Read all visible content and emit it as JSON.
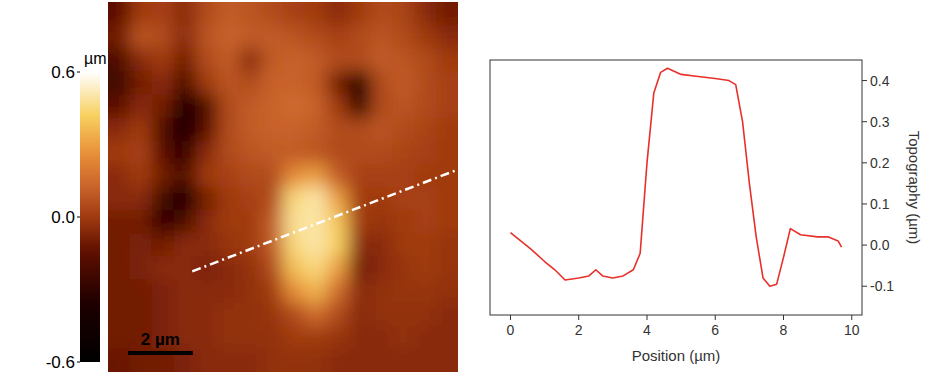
{
  "chart_data": [
    {
      "type": "heatmap",
      "xlim": [
        0,
        10.8
      ],
      "ylim": [
        0,
        11.4
      ],
      "cells": [
        [
          -0.15,
          0.0,
          0.02,
          -0.05,
          0.05,
          0.1,
          0.08,
          0.05,
          0.02,
          0.0,
          -0.05,
          0.0,
          0.05,
          0.03,
          -0.05,
          -0.1
        ],
        [
          -0.1,
          0.08,
          0.05,
          -0.05,
          0.08,
          0.12,
          0.1,
          0.1,
          0.08,
          0.05,
          0.02,
          0.05,
          0.08,
          0.05,
          0.0,
          -0.05
        ],
        [
          -0.2,
          -0.05,
          0.0,
          -0.1,
          0.05,
          0.1,
          -0.05,
          0.1,
          0.12,
          0.1,
          0.05,
          0.05,
          0.1,
          0.08,
          0.05,
          0.0
        ],
        [
          -0.25,
          -0.1,
          -0.05,
          -0.2,
          0.0,
          0.08,
          0.05,
          0.12,
          0.12,
          0.1,
          -0.1,
          -0.45,
          0.05,
          0.1,
          0.05,
          0.02
        ],
        [
          -0.15,
          -0.05,
          -0.1,
          -0.4,
          -0.2,
          0.05,
          0.1,
          0.12,
          0.15,
          0.12,
          0.0,
          -0.3,
          0.05,
          0.08,
          0.05,
          0.02
        ],
        [
          -0.05,
          0.0,
          -0.2,
          -0.45,
          -0.15,
          0.05,
          0.1,
          0.12,
          0.12,
          0.1,
          0.05,
          0.05,
          0.08,
          0.05,
          0.03,
          0.0
        ],
        [
          0.0,
          0.02,
          -0.15,
          -0.3,
          -0.05,
          0.05,
          0.08,
          0.1,
          0.1,
          0.08,
          0.05,
          0.05,
          0.05,
          0.03,
          0.02,
          0.0
        ],
        [
          -0.05,
          0.0,
          -0.1,
          -0.2,
          0.0,
          0.02,
          0.05,
          0.05,
          0.25,
          0.3,
          0.1,
          0.02,
          0.02,
          0.02,
          0.0,
          0.0
        ],
        [
          -0.05,
          -0.05,
          -0.25,
          -0.4,
          -0.1,
          0.0,
          0.02,
          0.05,
          0.45,
          0.5,
          0.3,
          0.0,
          0.0,
          0.02,
          0.02,
          0.0
        ],
        [
          -0.1,
          -0.1,
          -0.3,
          -0.2,
          -0.05,
          0.0,
          0.0,
          0.1,
          0.48,
          0.5,
          0.4,
          0.0,
          -0.02,
          0.0,
          0.02,
          0.0
        ],
        [
          -0.1,
          -0.08,
          -0.1,
          -0.05,
          -0.05,
          -0.02,
          0.0,
          0.1,
          0.45,
          0.5,
          0.42,
          -0.05,
          -0.05,
          0.0,
          0.0,
          -0.02
        ],
        [
          -0.1,
          -0.08,
          -0.05,
          -0.05,
          -0.08,
          -0.05,
          -0.03,
          0.05,
          0.38,
          0.45,
          0.3,
          -0.1,
          -0.05,
          -0.02,
          0.0,
          -0.02
        ],
        [
          -0.1,
          -0.1,
          -0.08,
          -0.05,
          -0.05,
          -0.05,
          -0.03,
          0.0,
          0.25,
          0.35,
          0.15,
          -0.05,
          -0.03,
          -0.02,
          -0.02,
          -0.03
        ],
        [
          -0.1,
          -0.1,
          -0.08,
          -0.05,
          -0.05,
          -0.03,
          -0.03,
          -0.02,
          0.05,
          0.15,
          0.05,
          -0.05,
          -0.03,
          -0.03,
          -0.03,
          -0.05
        ],
        [
          -0.1,
          -0.1,
          -0.08,
          -0.05,
          -0.05,
          -0.03,
          -0.03,
          -0.03,
          0.0,
          0.0,
          -0.02,
          -0.05,
          -0.05,
          -0.03,
          -0.05,
          -0.05
        ],
        [
          -0.12,
          -0.1,
          -0.1,
          -0.08,
          -0.05,
          -0.05,
          -0.05,
          -0.03,
          -0.03,
          -0.03,
          -0.05,
          -0.05,
          -0.05,
          -0.05,
          -0.05,
          -0.05
        ]
      ],
      "colorbar": {
        "range": [
          -0.6,
          0.6
        ],
        "ticks": [
          0.6,
          {
            "value": 0,
            "label": "0.0"
          },
          -0.6
        ],
        "label": "µm"
      },
      "scale_bar": {
        "value": 2,
        "label": "2 µm"
      },
      "line": {
        "x": [
          2.6,
          10.7
        ],
        "y": [
          8.3,
          5.2
        ]
      }
    },
    {
      "type": "line",
      "x": [
        0,
        0.3,
        0.6,
        1.0,
        1.3,
        1.6,
        2.0,
        2.3,
        2.5,
        2.7,
        3.0,
        3.3,
        3.6,
        3.8,
        4.0,
        4.2,
        4.4,
        4.6,
        5.0,
        5.5,
        6.0,
        6.4,
        6.6,
        6.8,
        7.0,
        7.2,
        7.4,
        7.6,
        7.8,
        8.0,
        8.2,
        8.5,
        9.0,
        9.3,
        9.6,
        9.7
      ],
      "values": [
        0.03,
        0.01,
        -0.01,
        -0.04,
        -0.06,
        -0.085,
        -0.08,
        -0.075,
        -0.06,
        -0.075,
        -0.08,
        -0.075,
        -0.06,
        -0.02,
        0.2,
        0.37,
        0.42,
        0.43,
        0.415,
        0.41,
        0.405,
        0.4,
        0.39,
        0.3,
        0.15,
        0.02,
        -0.08,
        -0.1,
        -0.095,
        -0.03,
        0.04,
        0.025,
        0.02,
        0.02,
        0.01,
        -0.005
      ],
      "color": "#e8302a",
      "x_label": "Position (µm)",
      "y_label": "Topography (µm)",
      "xlim": [
        -0.6,
        10.3
      ],
      "ylim": [
        -0.17,
        0.45
      ],
      "xticks": [
        0,
        2,
        4,
        6,
        8,
        10
      ],
      "yticks": [
        -0.1,
        {
          "value": 0,
          "label": "0.0"
        },
        0.1,
        0.2,
        0.3,
        0.4
      ]
    }
  ]
}
